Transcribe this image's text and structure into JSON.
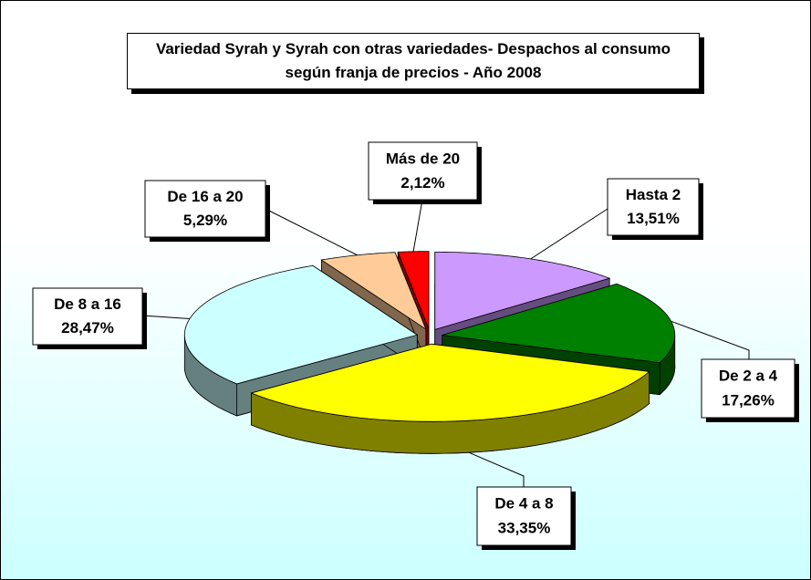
{
  "chart_data": {
    "type": "pie",
    "title": "Variedad Syrah y Syrah con otras  variedades- Despachos al consumo según franja de precios - Año 2008",
    "categories": [
      "Hasta 2",
      "De 2 a 4",
      "De 4 a 8",
      "De 8 a 16",
      "De 16 a 20",
      "Más de 20"
    ],
    "values": [
      13.51,
      17.26,
      33.35,
      28.47,
      5.29,
      2.12
    ],
    "value_labels": [
      "13,51%",
      "17,26%",
      "33,35%",
      "28,47%",
      "5,29%",
      "2,12%"
    ],
    "colors": [
      "#cc99ff",
      "#008000",
      "#ffff00",
      "#ccffff",
      "#ffcc99",
      "#ff0000"
    ]
  }
}
